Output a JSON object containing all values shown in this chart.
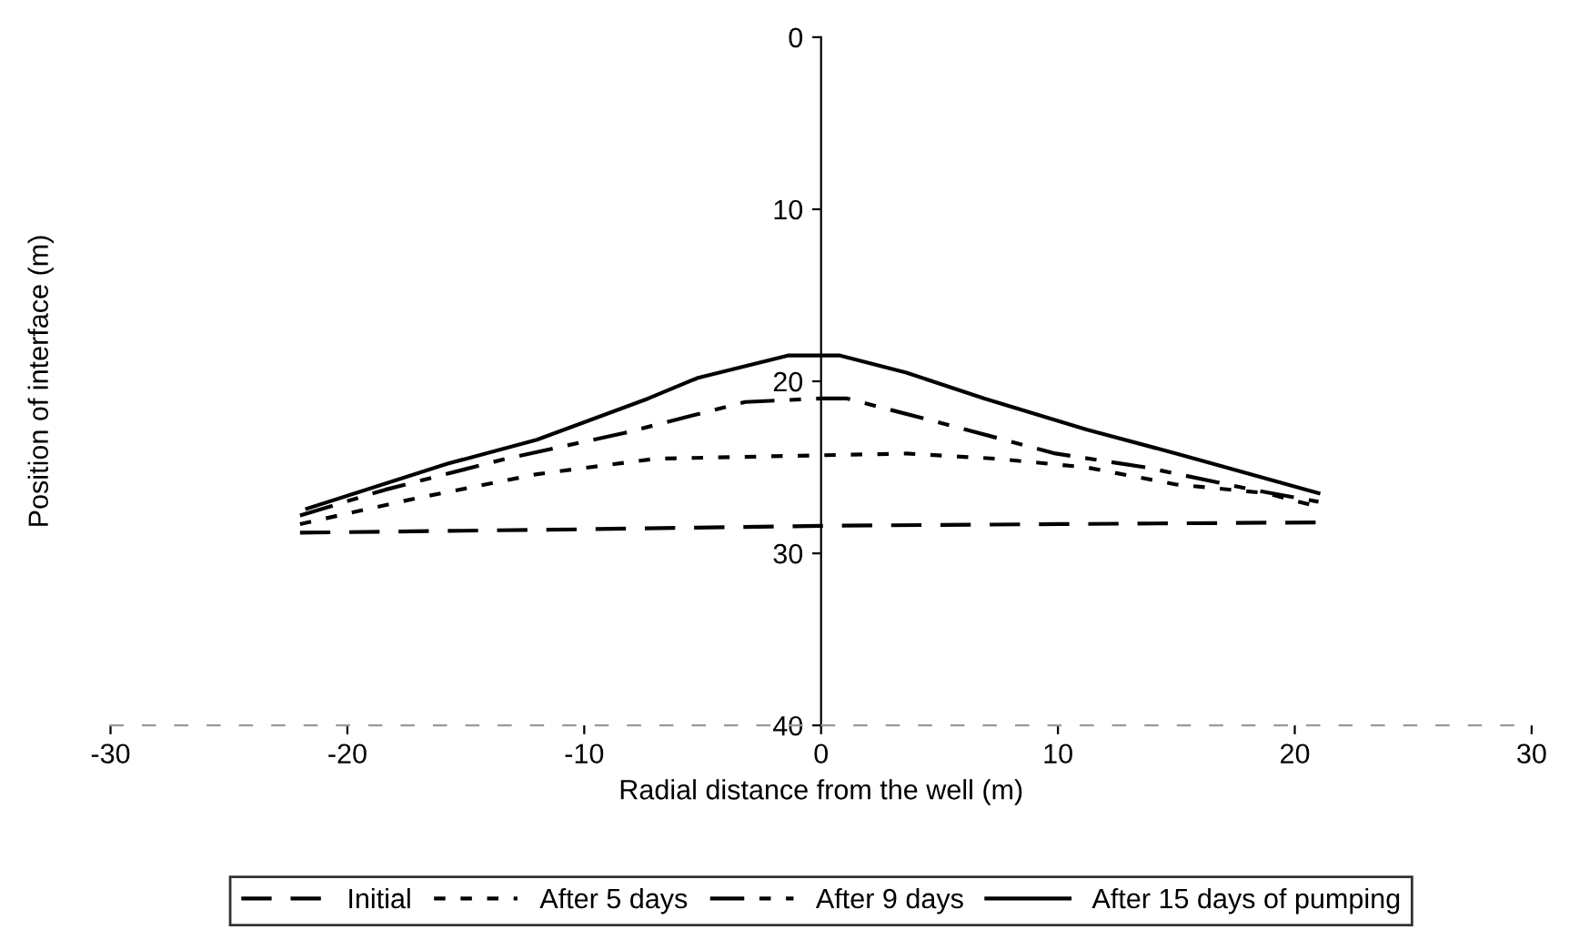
{
  "chart_data": {
    "type": "line",
    "xlabel": "Radial distance from the well (m)",
    "ylabel": "Position of interface (m)",
    "xlim": [
      -30,
      30
    ],
    "ylim": [
      40,
      0
    ],
    "xticks": [
      -30,
      -20,
      -10,
      0,
      10,
      20,
      30
    ],
    "yticks": [
      0,
      10,
      20,
      30,
      40
    ],
    "grid": false,
    "legend": "bottom",
    "marker": "none",
    "series": [
      {
        "name": "Initial",
        "color": "#000000",
        "line_style": "dashed",
        "x": [
          -22,
          -10,
          0,
          10,
          21
        ],
        "values": [
          28.8,
          28.6,
          28.4,
          28.3,
          28.2
        ]
      },
      {
        "name": "After 5 days",
        "color": "#000000",
        "line_style": "dotted",
        "x": [
          -22,
          -17.1,
          -12,
          -7,
          0,
          3.6,
          7.4,
          11.2,
          15,
          18.8,
          21
        ],
        "values": [
          28.3,
          26.8,
          25.4,
          24.5,
          24.3,
          24.2,
          24.5,
          25,
          26,
          26.5,
          27.3
        ]
      },
      {
        "name": "After 9 days",
        "color": "#000000",
        "line_style": "dashdot",
        "x": [
          -22,
          -18.4,
          -13.3,
          -8.3,
          -3.2,
          0,
          1.1,
          6.1,
          9.9,
          13.7,
          18.2,
          21
        ],
        "values": [
          27.8,
          26.3,
          24.5,
          23,
          21.2,
          21,
          21,
          22.8,
          24.2,
          25,
          26.3,
          27
        ]
      },
      {
        "name": "After 15 days of pumping",
        "color": "#000000",
        "line_style": "solid",
        "x": [
          -21.7,
          -15.8,
          -12,
          -7.3,
          -5.2,
          -1.4,
          0.8,
          3.6,
          6.9,
          11.2,
          15,
          21
        ],
        "values": [
          27.4,
          24.8,
          23.4,
          21,
          19.8,
          18.5,
          18.5,
          19.5,
          21,
          22.8,
          24.2,
          26.5
        ]
      }
    ]
  }
}
